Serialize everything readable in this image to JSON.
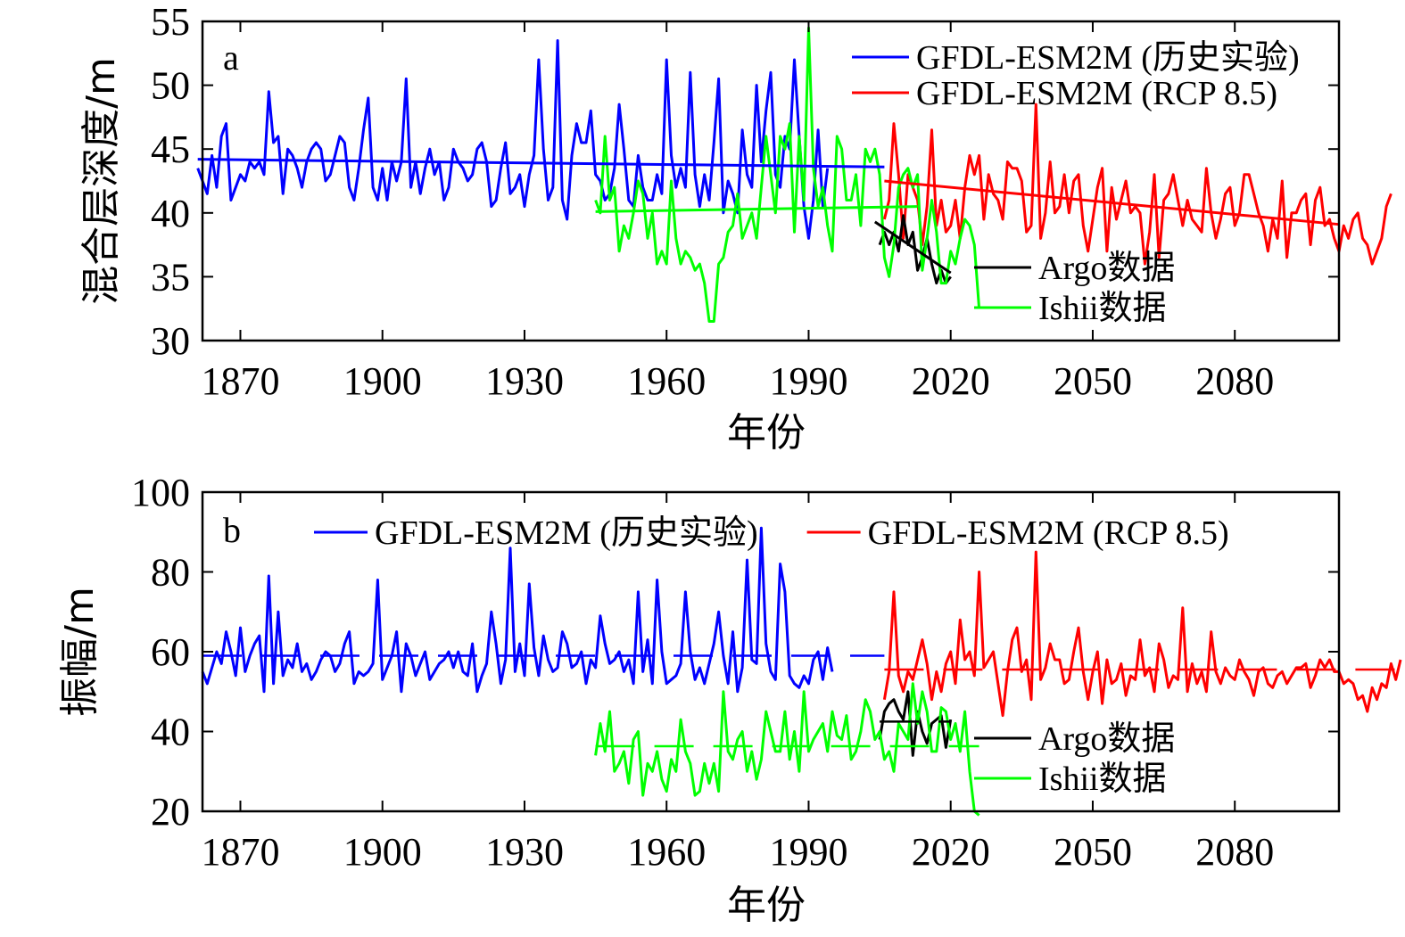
{
  "chart_data": [
    {
      "type": "line",
      "panel_label": "a",
      "xlabel": "年份",
      "ylabel": "混合层深度/m",
      "xlim": [
        1862,
        2102
      ],
      "ylim": [
        30,
        55
      ],
      "xticks": [
        1870,
        1900,
        1930,
        1960,
        1990,
        2020,
        2050,
        2080
      ],
      "yticks": [
        30,
        35,
        40,
        45,
        50,
        55
      ],
      "legend": [
        {
          "name": "GFDL-ESM2M (历史实验)",
          "color": "#0000ff",
          "position": "top-right"
        },
        {
          "name": "GFDL-ESM2M (RCP 8.5)",
          "color": "#ff0000",
          "position": "top-right"
        },
        {
          "name": "Argo数据",
          "color": "#000000",
          "position": "lower-right"
        },
        {
          "name": "Ishii数据",
          "color": "#00ff00",
          "position": "lower-right"
        }
      ],
      "series": [
        {
          "name": "GFDL-ESM2M (历史实验)",
          "color": "#0000ff",
          "x_start": 1861,
          "values": [
            43.5,
            42.5,
            41.5,
            44.5,
            42,
            46,
            47,
            41,
            42,
            43,
            42.5,
            44,
            43.5,
            44,
            43,
            49.5,
            45.5,
            46,
            41.5,
            45,
            44.5,
            43.5,
            42,
            44,
            45,
            45.5,
            45,
            42.5,
            43,
            44.5,
            46,
            45.5,
            42,
            41,
            43.5,
            46.5,
            49,
            42,
            41,
            43.5,
            41,
            44,
            42.5,
            44,
            50.5,
            42,
            44,
            41.5,
            43.5,
            45,
            43,
            44,
            41,
            42,
            45,
            44,
            43.5,
            42.5,
            43,
            45,
            45.5,
            44,
            40.5,
            41,
            43.5,
            45.5,
            41.5,
            42,
            43,
            40.5,
            43,
            44.5,
            52,
            45,
            41,
            42,
            53.5,
            41,
            39.5,
            44.5,
            47,
            45.5,
            45.5,
            48,
            43,
            42.5,
            41,
            41.5,
            43.5,
            48.5,
            45,
            41,
            40.5,
            44.5,
            42,
            41,
            41,
            43,
            41.5,
            52,
            44.5,
            42,
            43.5,
            42,
            51,
            43,
            40.5,
            43,
            41,
            45.5,
            50.5,
            40,
            42.5,
            41.5,
            40,
            46.5,
            43,
            42,
            50,
            44,
            48,
            51,
            43,
            42,
            46,
            45,
            52,
            46,
            40.5,
            38,
            41,
            46.5,
            40.5,
            43.5
          ],
          "trend": {
            "x": [
              1861,
              2006
            ],
            "y": [
              44.2,
              43.6
            ]
          }
        },
        {
          "name": "GFDL-ESM2M (RCP 8.5)",
          "color": "#ff0000",
          "x_start": 2006,
          "values": [
            39.5,
            41,
            47,
            43,
            38,
            43,
            42,
            41,
            37.5,
            40.5,
            46.5,
            39,
            41,
            38.5,
            39,
            41,
            38,
            42,
            44.5,
            43,
            44.5,
            39.5,
            43,
            41.5,
            41,
            39.5,
            44,
            43.5,
            43.5,
            42.5,
            38.5,
            39,
            48.5,
            38,
            40,
            44,
            40,
            40.5,
            43,
            40,
            42.5,
            43,
            39,
            37,
            39.5,
            42,
            43.5,
            37,
            42,
            39.5,
            41,
            42.5,
            40,
            40.5,
            40,
            36,
            38.5,
            43,
            36.5,
            41,
            41.5,
            43,
            41,
            39,
            41,
            39.5,
            39,
            38.5,
            43.5,
            40,
            38,
            39.5,
            41.5,
            42,
            39,
            40,
            43,
            43,
            41.5,
            40,
            39,
            37,
            39.5,
            38,
            42.5,
            36.5,
            40,
            40,
            41,
            41.5,
            37.5,
            41,
            42,
            39,
            39.5,
            38,
            37,
            39,
            38,
            39.5,
            40,
            38,
            37.5,
            36,
            37,
            38,
            40.5,
            41.5
          ],
          "trend": {
            "x": [
              2006,
              2102
            ],
            "y": [
              42.5,
              39.1
            ]
          }
        },
        {
          "name": "Argo数据",
          "color": "#000000",
          "x_start": 2005,
          "values": [
            37.5,
            38.5,
            37.5,
            38.5,
            37,
            39.8,
            37.5,
            38.5,
            35.5,
            36.5,
            38,
            36,
            34.5,
            35.5,
            34.5,
            35
          ],
          "trend": {
            "x": [
              2004,
              2020
            ],
            "y": [
              39.3,
              35.3
            ]
          }
        },
        {
          "name": "Ishii数据",
          "color": "#00ff00",
          "x_start": 1945,
          "values": [
            41,
            40,
            46,
            41,
            42,
            37,
            39,
            38,
            40,
            42.5,
            41.5,
            38,
            40,
            36,
            37,
            36,
            42.5,
            38,
            36,
            37,
            36.5,
            35.5,
            36,
            34.5,
            31.5,
            31.5,
            36,
            36.5,
            38.5,
            39,
            41.5,
            38,
            39,
            40,
            38,
            42,
            46,
            43,
            40,
            46,
            45,
            47,
            38.5,
            46,
            41,
            54.5,
            43.5,
            40.5,
            42,
            39,
            37,
            46,
            45,
            41,
            41,
            43,
            39,
            45,
            44,
            45,
            43,
            36.5,
            35,
            37.5,
            42,
            43,
            43.5,
            42,
            43,
            35.5,
            38,
            41,
            38.5,
            34.5,
            34.5,
            37,
            36,
            38,
            39.5,
            39,
            37.5,
            32.5
          ],
          "trend": {
            "x": [
              1945,
              2013
            ],
            "y": [
              40.1,
              40.5
            ]
          }
        }
      ]
    },
    {
      "type": "line",
      "panel_label": "b",
      "xlabel": "年份",
      "ylabel": "振幅/m",
      "xlim": [
        1862,
        2102
      ],
      "ylim": [
        20,
        100
      ],
      "xticks": [
        1870,
        1900,
        1930,
        1960,
        1990,
        2020,
        2050,
        2080
      ],
      "yticks": [
        20,
        40,
        60,
        80,
        100
      ],
      "legend": [
        {
          "name": "GFDL-ESM2M (历史实验)",
          "color": "#0000ff",
          "position": "top-center"
        },
        {
          "name": "GFDL-ESM2M (RCP 8.5)",
          "color": "#ff0000",
          "position": "top-right"
        },
        {
          "name": "Argo数据",
          "color": "#000000",
          "position": "lower-right"
        },
        {
          "name": "Ishii数据",
          "color": "#00ff00",
          "position": "lower-right"
        }
      ],
      "series": [
        {
          "name": "GFDL-ESM2M (历史实验)",
          "color": "#0000ff",
          "x_start": 1862,
          "values": [
            55,
            52,
            56,
            60,
            57,
            65,
            60,
            54,
            66,
            55,
            59,
            62,
            64,
            50,
            79,
            52,
            70,
            54,
            58,
            56,
            62,
            55,
            57,
            53,
            55,
            58,
            60,
            59,
            55,
            57,
            62,
            65,
            52,
            55,
            54,
            55,
            57,
            78,
            53,
            56,
            59,
            65,
            50,
            62,
            59,
            54,
            57,
            60,
            53,
            55,
            57,
            58,
            60,
            56,
            60,
            55,
            54,
            62,
            50,
            54,
            57,
            70,
            62,
            52,
            58,
            86,
            55,
            62,
            54,
            77,
            61,
            54,
            64,
            58,
            55,
            56,
            65,
            62,
            56,
            57,
            60,
            52,
            58,
            56,
            69,
            62,
            57,
            58,
            60,
            55,
            58,
            52,
            75,
            55,
            63,
            52,
            78,
            60,
            52,
            53,
            54,
            57,
            75,
            60,
            53,
            56,
            52,
            57,
            62,
            70,
            59,
            52,
            65,
            50,
            56,
            83,
            58,
            57,
            91,
            62,
            55,
            53,
            82,
            75,
            54,
            52,
            51,
            54,
            52,
            58,
            60,
            53,
            61,
            55
          ],
          "trend": {
            "x": [
              1862,
              2006
            ],
            "y": [
              59,
              59
            ]
          }
        },
        {
          "name": "GFDL-ESM2M (RCP 8.5)",
          "color": "#ff0000",
          "x_start": 2006,
          "values": [
            48,
            55,
            75,
            54,
            50,
            55,
            53,
            58,
            63,
            57,
            48,
            55,
            50,
            57,
            60,
            52,
            68,
            58,
            60,
            54,
            80,
            56,
            58,
            60,
            52,
            44,
            55,
            63,
            66,
            55,
            58,
            48,
            85,
            53,
            56,
            62,
            58,
            58,
            52,
            53,
            60,
            66,
            55,
            48,
            55,
            60,
            47,
            58,
            52,
            53,
            57,
            49,
            54,
            53,
            63,
            54,
            56,
            50,
            62,
            58,
            51,
            54,
            53,
            71,
            50,
            57,
            52,
            55,
            50,
            65,
            55,
            52,
            56,
            54,
            53,
            58,
            55,
            53,
            49,
            55,
            56,
            52,
            51,
            54,
            55,
            52,
            54,
            56,
            56,
            57,
            51,
            54,
            58,
            56,
            58,
            55,
            55,
            52,
            53,
            52,
            48,
            49,
            45,
            51,
            48,
            52,
            51,
            57,
            53,
            58
          ]
        },
        {
          "name": "Argo数据",
          "color": "#000000",
          "x_start": 2005,
          "values": [
            38,
            45,
            47,
            48,
            45,
            43,
            50,
            34,
            45,
            40,
            37,
            42,
            43,
            44,
            36,
            43
          ]
        },
        {
          "name": "Ishii数据",
          "color": "#00ff00",
          "x_start": 1945,
          "values": [
            34,
            42,
            35,
            45,
            30,
            32,
            35,
            27,
            38,
            40,
            24,
            32,
            30,
            35,
            28,
            25,
            33,
            30,
            43,
            35,
            32,
            24,
            25,
            32,
            27,
            32,
            25,
            50,
            35,
            33,
            38,
            40,
            30,
            35,
            28,
            33,
            45,
            40,
            35,
            35,
            45,
            33,
            40,
            30,
            50,
            35,
            38,
            40,
            42,
            35,
            45,
            39,
            38,
            44,
            33,
            35,
            40,
            48,
            45,
            38,
            40,
            33,
            35,
            30,
            42,
            40,
            38,
            52,
            42,
            50,
            45,
            35,
            35,
            46,
            45,
            38,
            42,
            35,
            45,
            30,
            20,
            19
          ]
        }
      ]
    }
  ]
}
